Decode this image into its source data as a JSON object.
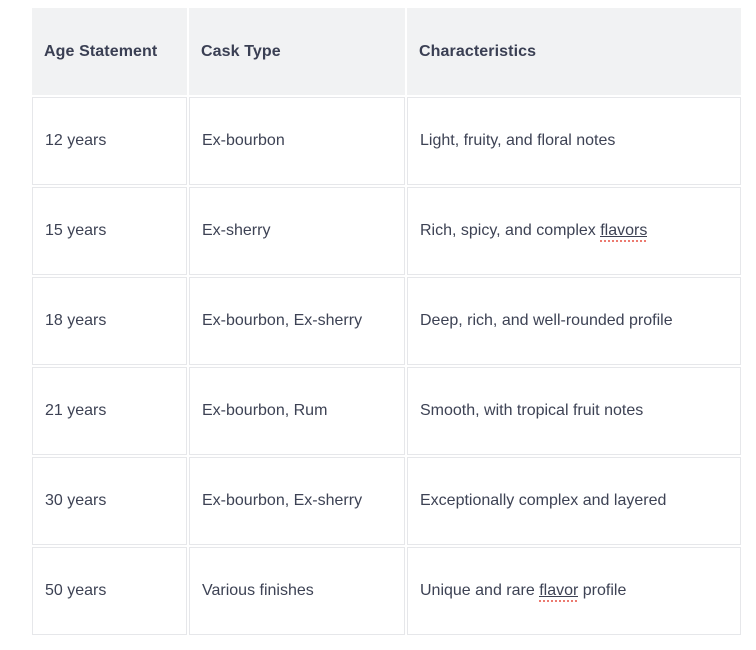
{
  "table": {
    "columns": [
      {
        "id": "age_statement",
        "label": "Age Statement"
      },
      {
        "id": "cask_type",
        "label": "Cask Type"
      },
      {
        "id": "characteristics",
        "label": "Characteristics"
      }
    ],
    "rows": [
      {
        "age_statement": "12 years",
        "cask_type": "Ex-bourbon",
        "characteristics": [
          {
            "text": "Light, fruity, and floral notes"
          }
        ]
      },
      {
        "age_statement": "15 years",
        "cask_type": "Ex-sherry",
        "characteristics": [
          {
            "text": "Rich, spicy, and complex "
          },
          {
            "text": "flavors",
            "misspelled": true
          }
        ]
      },
      {
        "age_statement": "18 years",
        "cask_type": "Ex-bourbon, Ex-sherry",
        "characteristics": [
          {
            "text": "Deep, rich, and well-rounded profile"
          }
        ]
      },
      {
        "age_statement": "21 years",
        "cask_type": "Ex-bourbon, Rum",
        "characteristics": [
          {
            "text": "Smooth, with tropical fruit notes"
          }
        ]
      },
      {
        "age_statement": "30 years",
        "cask_type": "Ex-bourbon, Ex-sherry",
        "characteristics": [
          {
            "text": "Exceptionally complex and layered"
          }
        ]
      },
      {
        "age_statement": "50 years",
        "cask_type": "Various finishes",
        "characteristics": [
          {
            "text": "Unique and rare "
          },
          {
            "text": "flavor",
            "misspelled": true
          },
          {
            "text": " profile"
          }
        ]
      }
    ]
  },
  "colors": {
    "page_background": "#ffffff",
    "header_background": "#f1f2f3",
    "text": "#3d4254",
    "cell_border": "#e6e7ea",
    "spellcheck_underline": "#ec7a70"
  }
}
